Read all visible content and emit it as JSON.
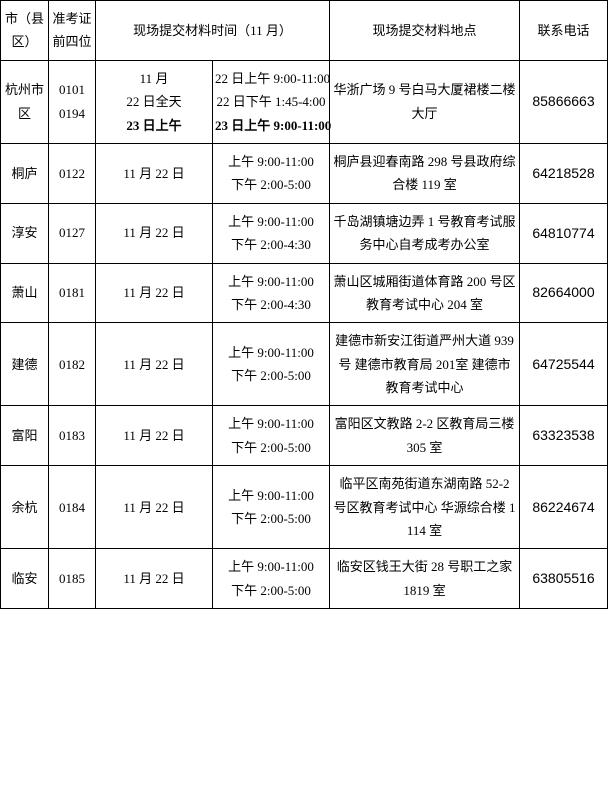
{
  "headers": {
    "city": "市（县区）",
    "code": "准考证前四位",
    "time": "现场提交材料时间（11 月）",
    "addr": "现场提交材料地点",
    "phone": "联系电话"
  },
  "row_hangzhou": {
    "city": "杭州市区",
    "code1": "0101",
    "code2": "0194",
    "date1": "11 月",
    "date2": "22 日全天",
    "date3": "23 日上午",
    "time1": "22 日上午 9:00-11:00",
    "time2": "22 日下午 1:45-4:00",
    "time3": "23 日上午 9:00-11:00",
    "addr": "华浙广场 9 号白马大厦裙楼二楼大厅",
    "phone": "85866663"
  },
  "row_tonglu": {
    "city": "桐庐",
    "code": "0122",
    "date": "11 月 22 日",
    "time1": "上午 9:00-11:00",
    "time2": "下午 2:00-5:00",
    "addr": "桐庐县迎春南路 298 号县政府综合楼 119 室",
    "phone": "64218528"
  },
  "row_chunan": {
    "city": "淳安",
    "code": "0127",
    "date": "11 月 22 日",
    "time1": "上午 9:00-11:00",
    "time2": "下午 2:00-4:30",
    "addr": "千岛湖镇塘边弄 1 号教育考试服务中心自考成考办公室",
    "phone": "64810774"
  },
  "row_xiaoshan": {
    "city": "萧山",
    "code": "0181",
    "date": "11 月 22 日",
    "time1": "上午 9:00-11:00",
    "time2": "下午 2:00-4:30",
    "addr": "萧山区城厢街道体育路 200 号区教育考试中心 204 室",
    "phone": "82664000"
  },
  "row_jiande": {
    "city": "建德",
    "code": "0182",
    "date": "11 月 22 日",
    "time1": "上午 9:00-11:00",
    "time2": "下午 2:00-5:00",
    "addr": "建德市新安江街道严州大道 939 号 建德市教育局 201室 建德市教育考试中心",
    "phone": "64725544"
  },
  "row_fuyang": {
    "city": "富阳",
    "code": "0183",
    "date": "11 月 22 日",
    "time1": "上午 9:00-11:00",
    "time2": "下午 2:00-5:00",
    "addr": "富阳区文教路 2-2 区教育局三楼 305 室",
    "phone": "63323538"
  },
  "row_yuhang": {
    "city": "余杭",
    "code": "0184",
    "date": "11 月 22 日",
    "time1": "上午 9:00-11:00",
    "time2": "下午 2:00-5:00",
    "addr": "临平区南苑街道东湖南路 52-2 号区教育考试中心 华源综合楼 1114 室",
    "phone": "86224674"
  },
  "row_linan": {
    "city": "临安",
    "code": "0185",
    "date": "11 月 22 日",
    "time1": "上午 9:00-11:00",
    "time2": "下午 2:00-5:00",
    "addr": "临安区钱王大街 28 号职工之家 1819 室",
    "phone": "63805516"
  }
}
